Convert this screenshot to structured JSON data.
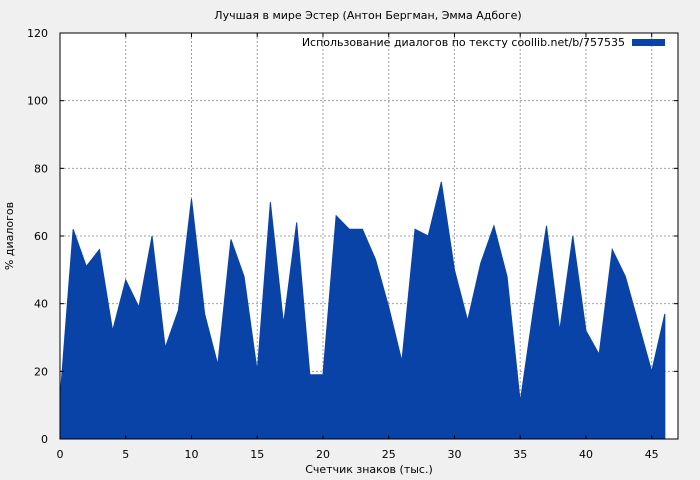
{
  "chart_data": {
    "type": "area",
    "title": "Лучшая в мире Эстер (Антон Бергман, Эмма Адбоге)",
    "xlabel": "Счетчик знаков (тыс.)",
    "ylabel": "% диалогов",
    "xlim": [
      0,
      47
    ],
    "ylim": [
      0,
      120
    ],
    "xticks": [
      0,
      5,
      10,
      15,
      20,
      25,
      30,
      35,
      40,
      45
    ],
    "yticks": [
      0,
      20,
      40,
      60,
      80,
      100,
      120
    ],
    "grid": true,
    "legend_position": "top-right",
    "series": [
      {
        "name": "Использование диалогов по тексту coollib.net/b/757535",
        "color": "#0a43a8",
        "x": [
          0,
          1,
          2,
          3,
          4,
          5,
          6,
          7,
          8,
          9,
          10,
          11,
          12,
          13,
          14,
          15,
          16,
          17,
          18,
          19,
          20,
          21,
          22,
          23,
          24,
          25,
          26,
          27,
          28,
          29,
          30,
          31,
          32,
          33,
          34,
          35,
          36,
          37,
          38,
          39,
          40,
          41,
          42,
          43,
          44,
          45,
          46
        ],
        "values": [
          12,
          62,
          51,
          56,
          32,
          47,
          39,
          60,
          27,
          38,
          71,
          37,
          22,
          59,
          48,
          20,
          70,
          34,
          64,
          19,
          19,
          66,
          62,
          62,
          53,
          39,
          23,
          62,
          60,
          76,
          50,
          35,
          52,
          63,
          48,
          11,
          38,
          63,
          32,
          60,
          32,
          25,
          56,
          48,
          34,
          20,
          37
        ]
      }
    ]
  }
}
